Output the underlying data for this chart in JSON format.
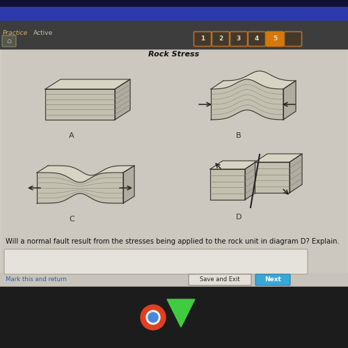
{
  "bg_strip_top": "#111133",
  "bg_blue": "#2d3aab",
  "bg_toolbar": "#3d3d3d",
  "bg_content": "#ccc8c0",
  "bg_white": "#e8e6e0",
  "title": "Rock Stress",
  "title_fontsize": 8,
  "question_text": "Will a normal fault result from the stresses being applied to the rock unit in diagram D? Explain.",
  "question_fontsize": 7,
  "label_A": "A",
  "label_B": "B",
  "label_C": "C",
  "label_D": "D",
  "nav_buttons": [
    "1",
    "2",
    "3",
    "4",
    "5",
    ""
  ],
  "nav_active": 4,
  "nav_active_color": "#d4780a",
  "nav_inactive_color": "#5a4a3a",
  "nav_border_color": "#b07030",
  "nav_text_color": "#ddddcc",
  "practice_color": "#d4b060",
  "active_color": "#c0c0b0",
  "mark_text": "Mark this and return",
  "mark_color": "#3060a0",
  "save_text": "Save and Exit",
  "next_text": "Next",
  "next_color": "#38a8d8",
  "rock_front": "#c0baa8",
  "rock_top": "#d8d4c4",
  "rock_right": "#a8a498",
  "rock_edge": "#444438",
  "rock_line": "#888880",
  "input_bg": "#e4e2da"
}
